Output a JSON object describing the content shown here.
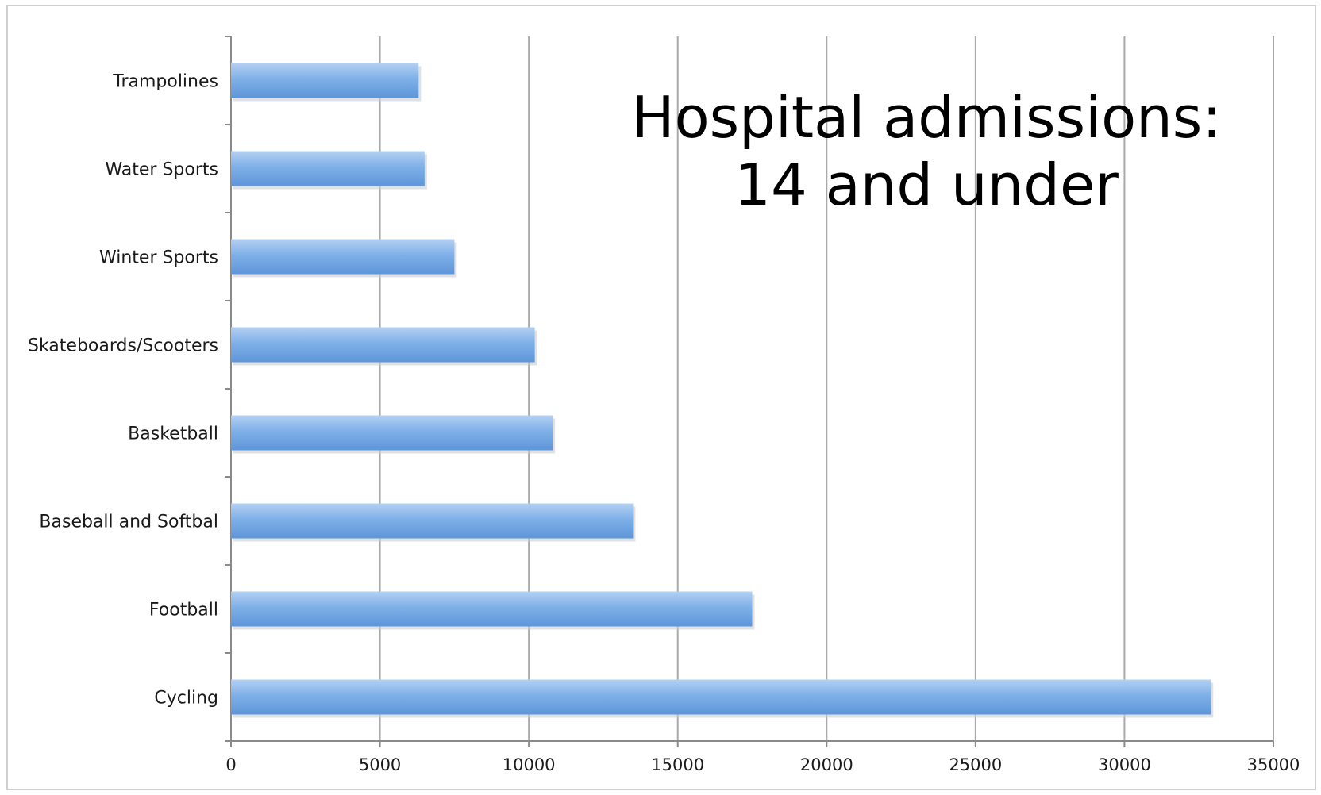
{
  "chart_data": {
    "type": "bar",
    "orientation": "horizontal",
    "title_lines": [
      "Hospital admissions:",
      "14 and under"
    ],
    "categories": [
      "Cycling",
      "Football",
      "Baseball and Softbal",
      "Basketball",
      "Skateboards/Scooters",
      "Winter Sports",
      "Water Sports",
      "Trampolines"
    ],
    "values": [
      32900,
      17500,
      13500,
      10800,
      10200,
      7500,
      6500,
      6300
    ],
    "xlim": [
      0,
      35000
    ],
    "xticks": [
      "0",
      "5000",
      "10000",
      "15000",
      "20000",
      "25000",
      "30000",
      "35000"
    ],
    "xlabel": "",
    "ylabel": "",
    "grid": "vertical",
    "colors": {
      "bar_top": "#b3d1f2",
      "bar_mid": "#7fb0e8",
      "bar_bottom": "#5e96d9",
      "grid": "#a9a9a9"
    }
  }
}
